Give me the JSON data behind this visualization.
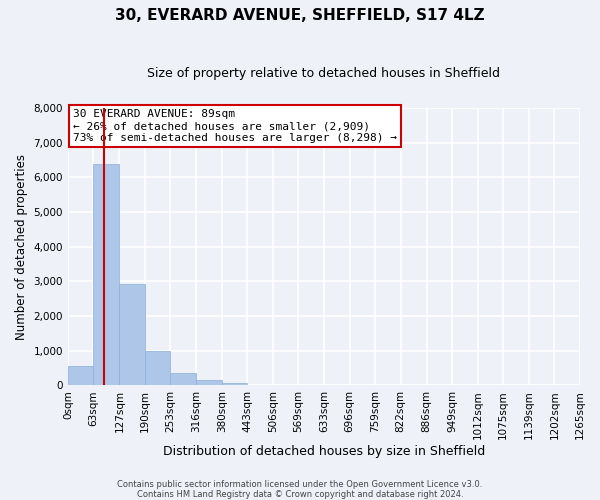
{
  "title": "30, EVERARD AVENUE, SHEFFIELD, S17 4LZ",
  "subtitle": "Size of property relative to detached houses in Sheffield",
  "xlabel": "Distribution of detached houses by size in Sheffield",
  "ylabel": "Number of detached properties",
  "bar_edges": [
    0,
    63,
    127,
    190,
    253,
    316,
    380,
    443,
    506,
    569,
    633,
    696,
    759,
    822,
    886,
    949,
    1012,
    1075,
    1139,
    1202,
    1265
  ],
  "bar_heights": [
    560,
    6400,
    2920,
    980,
    370,
    155,
    80,
    0,
    0,
    0,
    0,
    0,
    0,
    0,
    0,
    0,
    0,
    0,
    0,
    0
  ],
  "bar_color": "#aec6e8",
  "bar_edge_color": "#aec6e8",
  "vline_x": 89,
  "vline_color": "#cc0000",
  "ylim": [
    0,
    8000
  ],
  "yticks": [
    0,
    1000,
    2000,
    3000,
    4000,
    5000,
    6000,
    7000,
    8000
  ],
  "tick_labels": [
    "0sqm",
    "63sqm",
    "127sqm",
    "190sqm",
    "253sqm",
    "316sqm",
    "380sqm",
    "443sqm",
    "506sqm",
    "569sqm",
    "633sqm",
    "696sqm",
    "759sqm",
    "822sqm",
    "886sqm",
    "949sqm",
    "1012sqm",
    "1075sqm",
    "1139sqm",
    "1202sqm",
    "1265sqm"
  ],
  "annotation_title": "30 EVERARD AVENUE: 89sqm",
  "annotation_line1": "← 26% of detached houses are smaller (2,909)",
  "annotation_line2": "73% of semi-detached houses are larger (8,298) →",
  "annotation_box_color": "#ffffff",
  "annotation_box_edge": "#cc0000",
  "background_color": "#eef2f8",
  "grid_color": "#ffffff",
  "footer1": "Contains HM Land Registry data © Crown copyright and database right 2024.",
  "footer2": "Contains public sector information licensed under the Open Government Licence v3.0."
}
